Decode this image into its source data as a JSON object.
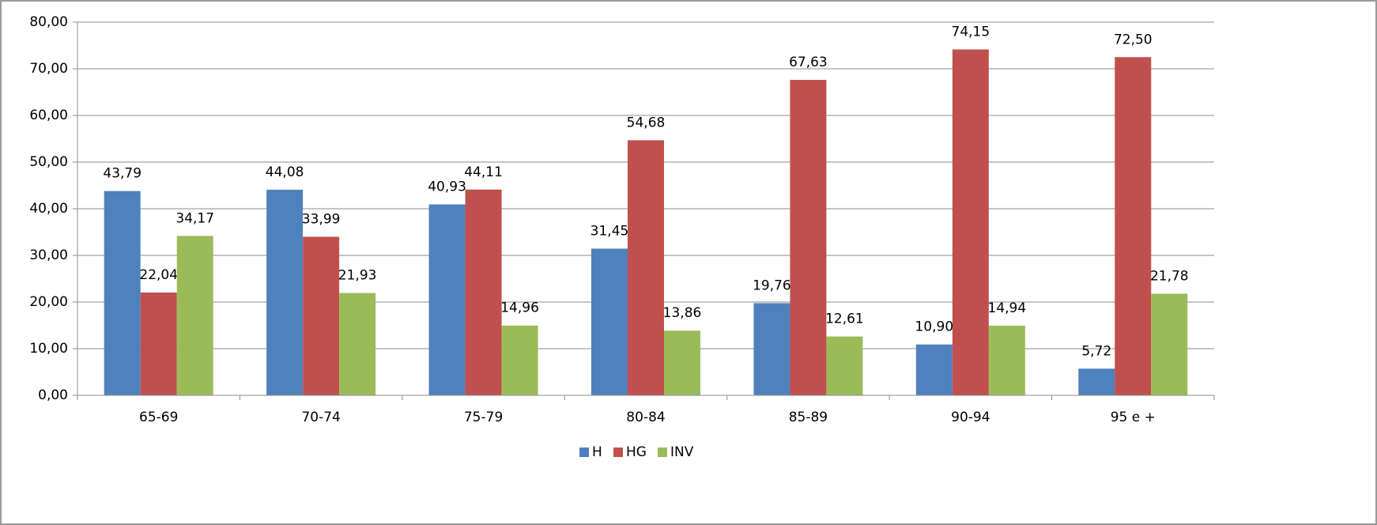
{
  "chart_data": {
    "type": "bar",
    "categories": [
      "65-69",
      "70-74",
      "75-79",
      "80-84",
      "85-89",
      "90-94",
      "95 e +"
    ],
    "series": [
      {
        "name": "H",
        "color": "#4f81bd",
        "values": [
          43.79,
          44.08,
          40.93,
          31.45,
          19.76,
          10.9,
          5.72
        ],
        "value_labels": [
          "43,79",
          "44,08",
          "40,93",
          "31,45",
          "19,76",
          "10,90",
          "5,72"
        ]
      },
      {
        "name": "HG",
        "color": "#c0504d",
        "values": [
          22.04,
          33.99,
          44.11,
          54.68,
          67.63,
          74.15,
          72.5
        ],
        "value_labels": [
          "22,04",
          "33,99",
          "44,11",
          "54,68",
          "67,63",
          "74,15",
          "72,50"
        ]
      },
      {
        "name": "INV",
        "color": "#9bbb59",
        "values": [
          34.17,
          21.93,
          14.96,
          13.86,
          12.61,
          14.94,
          21.78
        ],
        "value_labels": [
          "34,17",
          "21,93",
          "14,96",
          "13,86",
          "12,61",
          "14,94",
          "21,78"
        ]
      }
    ],
    "ylim": [
      0,
      80
    ],
    "yticks": [
      {
        "value": 0,
        "label": "0,00"
      },
      {
        "value": 10,
        "label": "10,00"
      },
      {
        "value": 20,
        "label": "20,00"
      },
      {
        "value": 30,
        "label": "30,00"
      },
      {
        "value": 40,
        "label": "40,00"
      },
      {
        "value": 50,
        "label": "50,00"
      },
      {
        "value": 60,
        "label": "60,00"
      },
      {
        "value": 70,
        "label": "70,00"
      },
      {
        "value": 80,
        "label": "80,00"
      }
    ],
    "grid": true,
    "legend": "bottom"
  }
}
